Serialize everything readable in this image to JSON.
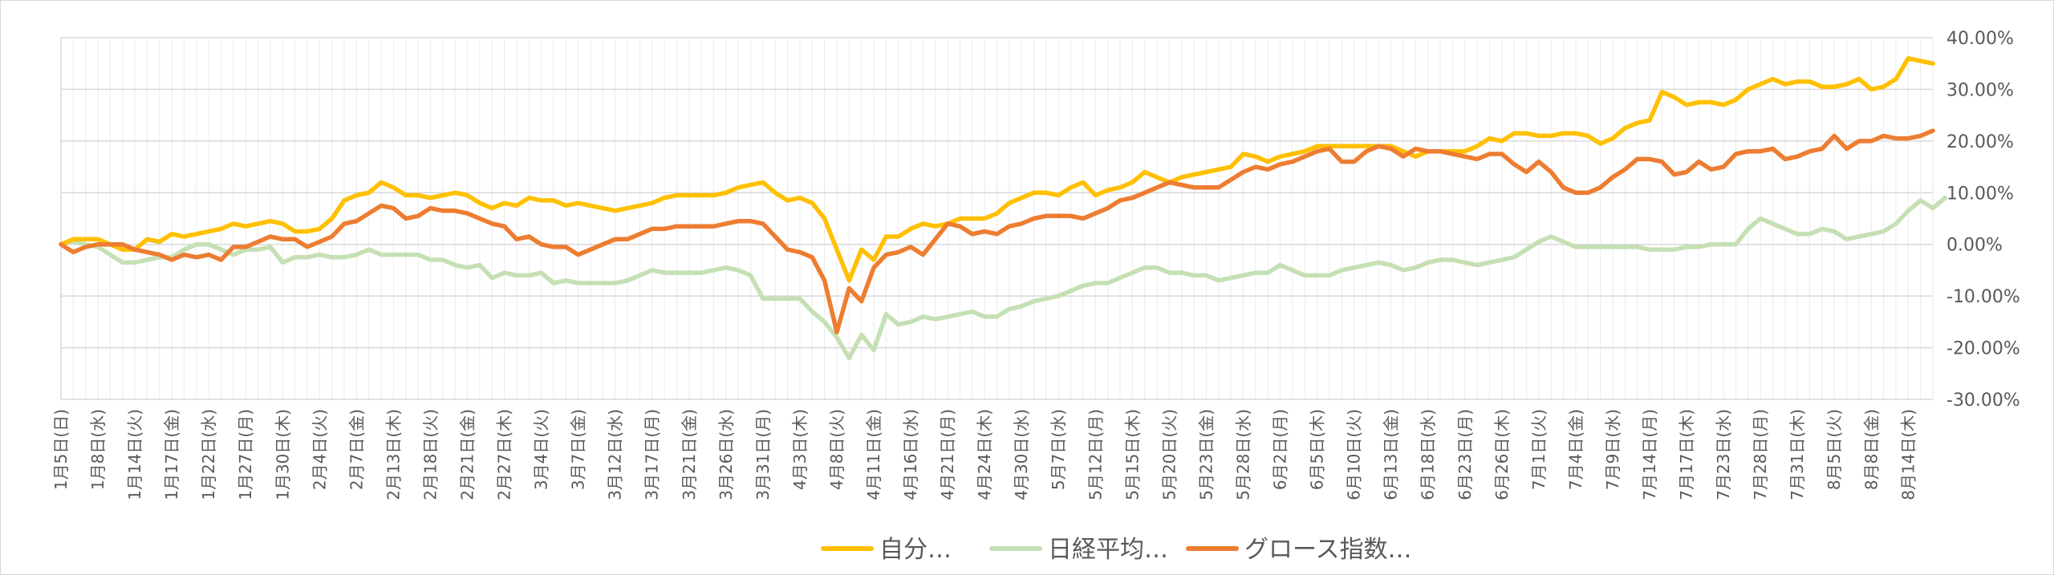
{
  "chart_data": {
    "type": "line",
    "title": "",
    "xlabel": "",
    "ylabel": "",
    "ylim": [
      -30,
      40
    ],
    "y_unit": "%",
    "y_axis_side": "right",
    "y_ticks": [
      "40.00%",
      "30.00%",
      "20.00%",
      "10.00%",
      "0.00%",
      "-10.00%",
      "-20.00%",
      "-30.00%"
    ],
    "grid": true,
    "legend_position": "bottom",
    "x_labels": [
      "1月5日(日)",
      "1月8日(水)",
      "1月14日(火)",
      "1月17日(金)",
      "1月22日(水)",
      "1月27日(月)",
      "1月30日(木)",
      "2月4日(火)",
      "2月7日(金)",
      "2月13日(木)",
      "2月18日(火)",
      "2月21日(金)",
      "2月27日(木)",
      "3月4日(火)",
      "3月7日(金)",
      "3月12日(水)",
      "3月17日(月)",
      "3月21日(金)",
      "3月26日(水)",
      "3月31日(月)",
      "4月3日(木)",
      "4月8日(火)",
      "4月11日(金)",
      "4月16日(水)",
      "4月21日(月)",
      "4月24日(木)",
      "4月30日(水)",
      "5月7日(水)",
      "5月12日(月)",
      "5月15日(木)",
      "5月20日(火)",
      "5月23日(金)",
      "5月28日(水)",
      "6月2日(月)",
      "6月5日(木)",
      "6月10日(火)",
      "6月13日(金)",
      "6月18日(水)",
      "6月23日(月)",
      "6月26日(木)",
      "7月1日(火)",
      "7月4日(金)",
      "7月9日(水)",
      "7月14日(月)",
      "7月17日(木)",
      "7月23日(水)",
      "7月28日(月)",
      "7月31日(木)",
      "8月5日(火)",
      "8月8日(金)",
      "8月14日(木)"
    ],
    "series": [
      {
        "name": "自分…",
        "color": "#FFC000",
        "values": [
          0,
          1,
          1,
          1,
          0,
          -1,
          -1,
          1,
          0.5,
          2,
          1.5,
          2,
          2.5,
          3,
          4,
          3.5,
          4,
          4.5,
          4,
          2.5,
          2.5,
          3,
          5,
          8.5,
          9.5,
          10,
          12,
          11,
          9.5,
          9.5,
          9,
          9.5,
          10,
          9.5,
          8,
          7,
          8,
          7.5,
          9,
          8.5,
          8.5,
          7.5,
          8,
          7.5,
          7,
          6.5,
          7,
          7.5,
          8,
          9,
          9.5,
          9.5,
          9.5,
          9.5,
          10,
          11,
          11.5,
          12,
          10,
          8.5,
          9,
          8,
          5,
          -1,
          -7,
          -1,
          -3,
          1.5,
          1.5,
          3,
          4,
          3.5,
          4,
          5,
          5,
          5,
          6,
          8,
          9,
          10,
          10,
          9.5,
          11,
          12,
          9.5,
          10.5,
          11,
          12,
          14,
          13,
          12,
          13,
          13.5,
          14,
          14.5,
          15,
          17.5,
          17,
          16,
          17,
          17.5,
          18,
          19,
          19,
          19,
          19,
          19,
          19,
          19,
          18,
          17,
          18,
          18,
          18,
          18,
          19,
          20.5,
          20,
          21.5,
          21.5,
          21,
          21,
          21.5,
          21.5,
          21,
          19.5,
          20.5,
          22.5,
          23.5,
          24,
          29.5,
          28.5,
          27,
          27.5,
          27.5,
          27,
          28,
          30,
          31,
          32,
          31,
          31.5,
          31.5,
          30.5,
          30.5,
          31,
          32,
          30,
          30.5,
          32,
          36,
          35.5,
          35
        ]
      },
      {
        "name": "日経平均…",
        "color": "#C5E0B4",
        "values": [
          0,
          0.5,
          0,
          -0.5,
          -2,
          -3.5,
          -3.5,
          -3,
          -2.5,
          -2.5,
          -1,
          0,
          0,
          -1,
          -2,
          -1,
          -1,
          -0.5,
          -3.5,
          -2.5,
          -2.5,
          -2,
          -2.5,
          -2.5,
          -2,
          -1,
          -2,
          -2,
          -2,
          -2,
          -3,
          -3,
          -4,
          -4.5,
          -4,
          -6.5,
          -5.5,
          -6,
          -6,
          -5.5,
          -7.5,
          -7,
          -7.5,
          -7.5,
          -7.5,
          -7.5,
          -7,
          -6,
          -5,
          -5.5,
          -5.5,
          -5.5,
          -5.5,
          -5,
          -4.5,
          -5,
          -6,
          -10.5,
          -10.5,
          -10.5,
          -10.5,
          -13,
          -15,
          -18,
          -22,
          -17.5,
          -20.5,
          -13.5,
          -15.5,
          -15,
          -14,
          -14.5,
          -14,
          -13.5,
          -13,
          -14,
          -14,
          -12.5,
          -12,
          -11,
          -10.5,
          -10,
          -9,
          -8,
          -7.5,
          -7.5,
          -6.5,
          -5.5,
          -4.5,
          -4.5,
          -5.5,
          -5.5,
          -6,
          -6,
          -7,
          -6.5,
          -6,
          -5.5,
          -5.5,
          -4,
          -5,
          -6,
          -6,
          -6,
          -5,
          -4.5,
          -4,
          -3.5,
          -4,
          -5,
          -4.5,
          -3.5,
          -3,
          -3,
          -3.5,
          -4,
          -3.5,
          -3,
          -2.5,
          -1,
          0.5,
          1.5,
          0.5,
          -0.5,
          -0.5,
          -0.5,
          -0.5,
          -0.5,
          -0.5,
          -1,
          -1,
          -1,
          -0.5,
          -0.5,
          0,
          0,
          0,
          3,
          5,
          4,
          3,
          2,
          2,
          3,
          2.5,
          1,
          1.5,
          2,
          2.5,
          4,
          6.5,
          8.5,
          7,
          9
        ]
      },
      {
        "name": "グロース指数…",
        "color": "#ED7D31",
        "values": [
          0,
          -1.5,
          -0.5,
          0,
          0,
          0,
          -1,
          -1.5,
          -2,
          -3,
          -2,
          -2.5,
          -2,
          -3,
          -0.5,
          -0.5,
          0.5,
          1.5,
          1,
          1,
          -0.5,
          0.5,
          1.5,
          4,
          4.5,
          6,
          7.5,
          7,
          5,
          5.5,
          7,
          6.5,
          6.5,
          6,
          5,
          4,
          3.5,
          1,
          1.5,
          0,
          -0.5,
          -0.5,
          -2,
          -1,
          0,
          1,
          1,
          2,
          3,
          3,
          3.5,
          3.5,
          3.5,
          3.5,
          4,
          4.5,
          4.5,
          4,
          1.5,
          -1,
          -1.5,
          -2.5,
          -7,
          -17,
          -8.5,
          -11,
          -4.5,
          -2,
          -1.5,
          -0.5,
          -2,
          1,
          4,
          3.5,
          2,
          2.5,
          2,
          3.5,
          4,
          5,
          5.5,
          5.5,
          5.5,
          5,
          6,
          7,
          8.5,
          9,
          10,
          11,
          12,
          11.5,
          11,
          11,
          11,
          12.5,
          14,
          15,
          14.5,
          15.5,
          16,
          17,
          18,
          18.5,
          16,
          16,
          18,
          19,
          18.5,
          17,
          18.5,
          18,
          18,
          17.5,
          17,
          16.5,
          17.5,
          17.5,
          15.5,
          14,
          16,
          14,
          11,
          10,
          10,
          11,
          13,
          14.5,
          16.5,
          16.5,
          16,
          13.5,
          14,
          16,
          14.5,
          15,
          17.5,
          18,
          18,
          18.5,
          16.5,
          17,
          18,
          18.5,
          21,
          18.5,
          20,
          20,
          21,
          20.5,
          20.5,
          21,
          22
        ]
      }
    ]
  }
}
